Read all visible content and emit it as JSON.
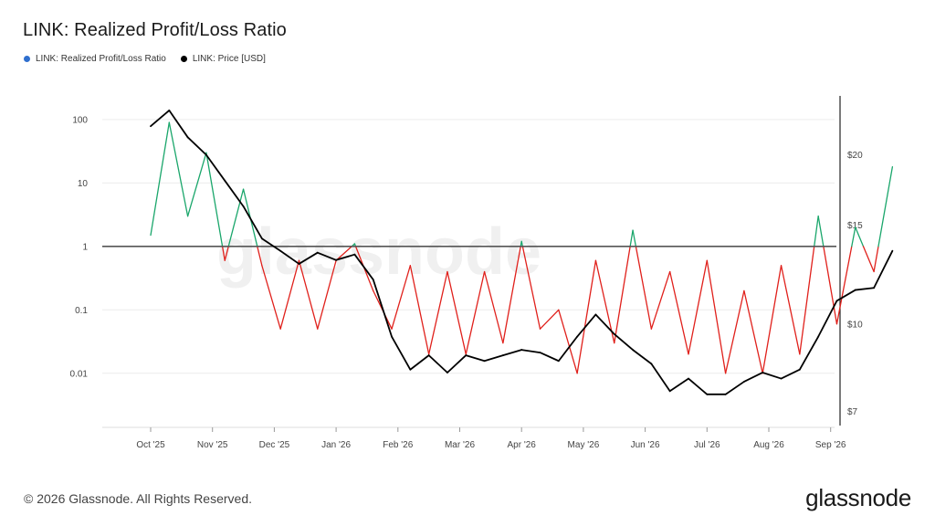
{
  "title": "LINK: Realized Profit/Loss Ratio",
  "legend": [
    {
      "label": "LINK: Realized Profit/Loss Ratio",
      "color": "#2f6fce"
    },
    {
      "label": "LINK: Price [USD]",
      "color": "#000000"
    }
  ],
  "watermark": "glassnode",
  "footer": {
    "copyright": "© 2026 Glassnode. All Rights Reserved.",
    "brand": "glassnode"
  },
  "colors": {
    "profit": "#1aa66b",
    "loss": "#e0201b",
    "price": "#000000",
    "reference_line": "#555555"
  },
  "chart_data": {
    "type": "line",
    "x_axis": {
      "labels": [
        "Oct '25",
        "Nov '25",
        "Dec '25",
        "Jan '26",
        "Feb '26",
        "Mar '26",
        "Apr '26",
        "May '26",
        "Jun '26",
        "Jul '26",
        "Aug '26",
        "Sep '26"
      ]
    },
    "y_left": {
      "scale": "log",
      "ticks": [
        100,
        10,
        1,
        0.1,
        0.01
      ],
      "tick_labels": [
        "100",
        "10",
        "1",
        "0.1",
        "0.01"
      ],
      "range": [
        0.0015,
        200
      ]
    },
    "y_right": {
      "scale": "log",
      "ticks": [
        7,
        10,
        15,
        20
      ],
      "tick_labels": [
        "$7",
        "$10",
        "$15",
        "$20"
      ],
      "range": [
        6.6,
        25
      ]
    },
    "reference_line": 1,
    "series": [
      {
        "name": "LINK: Realized Profit/Loss Ratio",
        "axis": "left",
        "color_rule": "green above 1, red below 1",
        "x_month": [
          0,
          0.3,
          0.6,
          0.9,
          1.2,
          1.5,
          1.8,
          2.1,
          2.4,
          2.7,
          3.0,
          3.3,
          3.6,
          3.9,
          4.2,
          4.5,
          4.8,
          5.1,
          5.4,
          5.7,
          6.0,
          6.3,
          6.6,
          6.9,
          7.2,
          7.5,
          7.8,
          8.1,
          8.4,
          8.7,
          9.0,
          9.3,
          9.6,
          9.9,
          10.2,
          10.5,
          10.8,
          11.1,
          11.4,
          11.7,
          12.0
        ],
        "values": [
          1.5,
          90,
          3,
          30,
          0.6,
          8,
          0.5,
          0.05,
          0.6,
          0.05,
          0.6,
          1.1,
          0.2,
          0.05,
          0.5,
          0.02,
          0.4,
          0.02,
          0.4,
          0.03,
          1.2,
          0.05,
          0.1,
          0.01,
          0.6,
          0.03,
          1.8,
          0.05,
          0.4,
          0.02,
          0.6,
          0.01,
          0.2,
          0.01,
          0.5,
          0.02,
          3.0,
          0.06,
          2.0,
          0.4,
          18
        ]
      },
      {
        "name": "LINK: Price [USD]",
        "axis": "right",
        "x_month": [
          0,
          0.3,
          0.6,
          0.9,
          1.2,
          1.5,
          1.8,
          2.1,
          2.4,
          2.7,
          3.0,
          3.3,
          3.6,
          3.9,
          4.2,
          4.5,
          4.8,
          5.1,
          5.4,
          5.7,
          6.0,
          6.3,
          6.6,
          6.9,
          7.2,
          7.5,
          7.8,
          8.1,
          8.4,
          8.7,
          9.0,
          9.3,
          9.6,
          9.9,
          10.2,
          10.5,
          10.8,
          11.1,
          11.4,
          11.7,
          12.0
        ],
        "values": [
          22.5,
          24.0,
          21.5,
          20.0,
          18.0,
          16.2,
          14.2,
          13.5,
          12.8,
          13.4,
          13.0,
          13.3,
          12.0,
          9.5,
          8.3,
          8.8,
          8.2,
          8.8,
          8.6,
          8.8,
          9.0,
          8.9,
          8.6,
          9.5,
          10.4,
          9.6,
          9.0,
          8.5,
          7.6,
          8.0,
          7.5,
          7.5,
          7.9,
          8.2,
          8.0,
          8.3,
          9.5,
          11.0,
          11.5,
          11.6,
          13.5
        ]
      }
    ]
  }
}
